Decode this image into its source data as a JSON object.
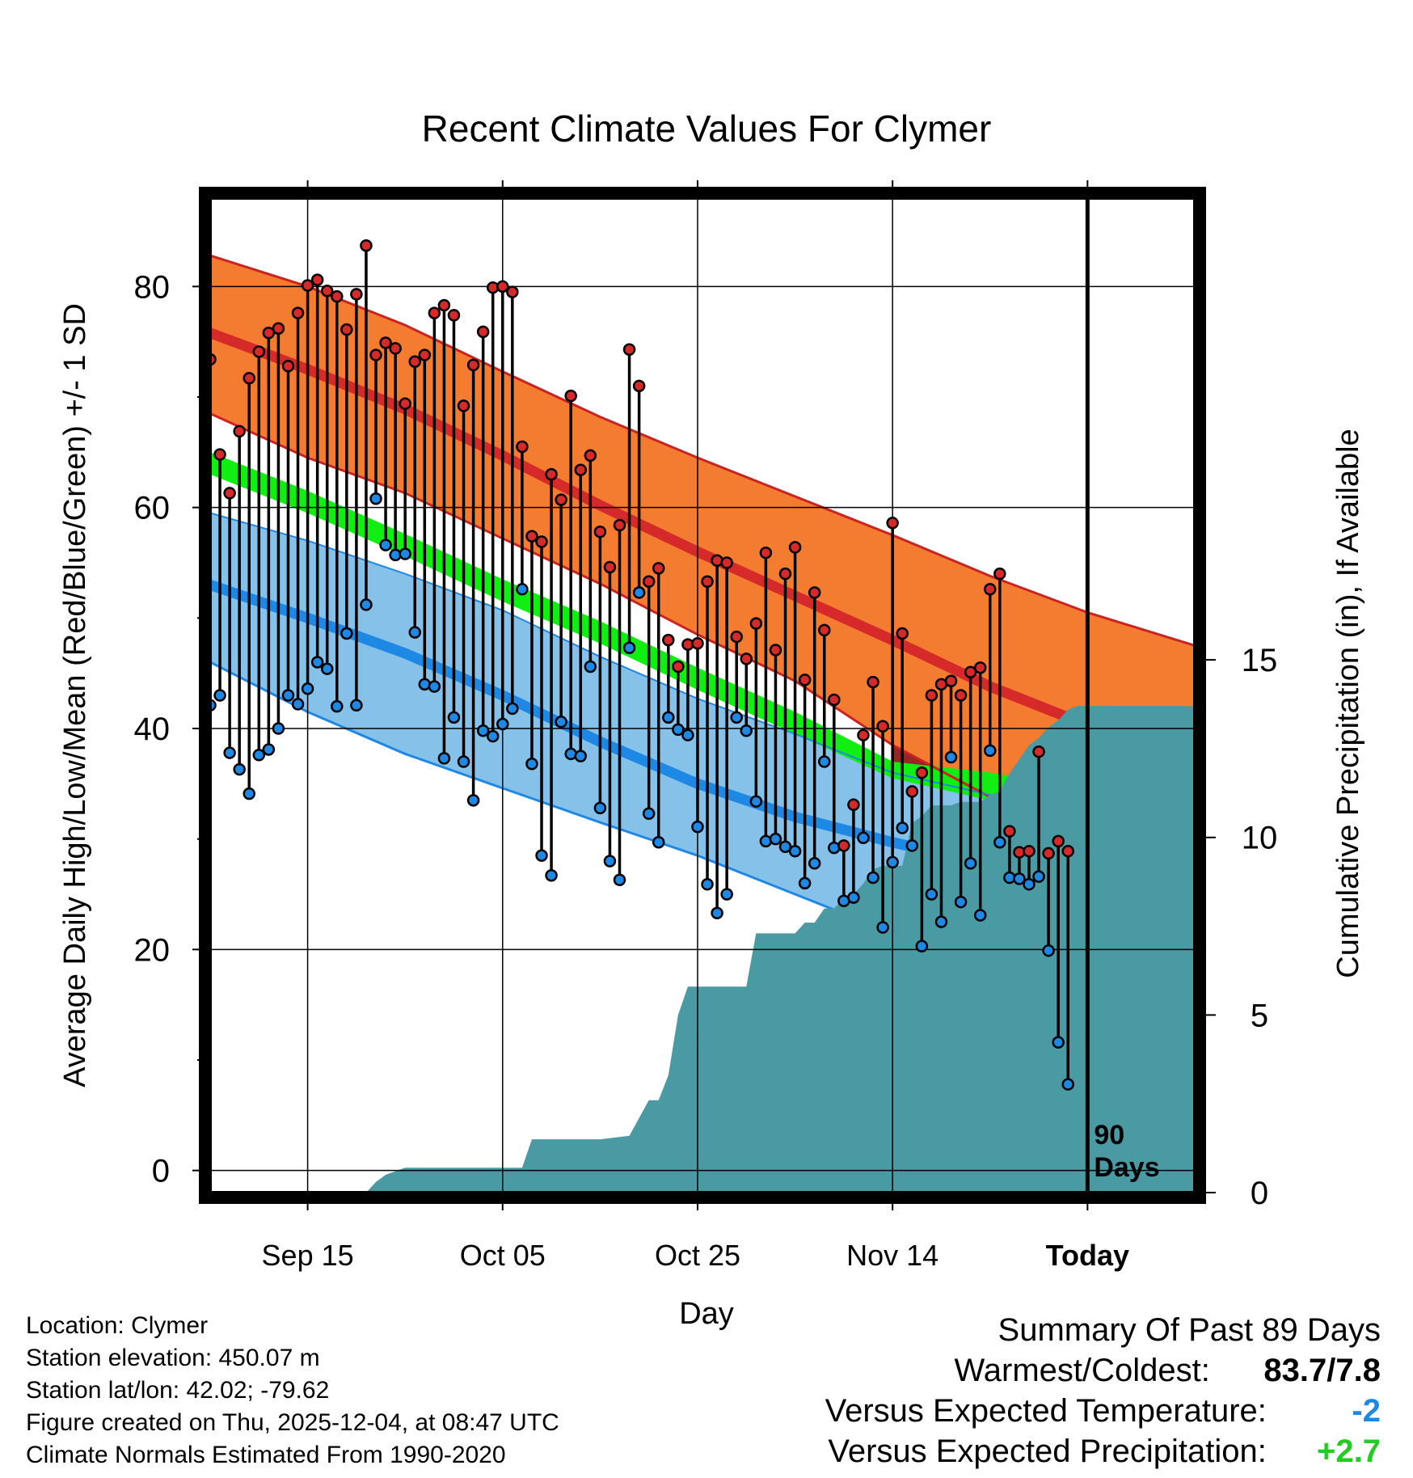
{
  "chart_data": {
    "type": "line",
    "title": "Recent Climate Values For Clymer",
    "xlabel": "Day",
    "ylabel": "Average Daily High/Low/Mean (Red/Blue/Green) +/- 1 SD",
    "y2label": "Cumulative Precipitation (in), If Available",
    "ylim": [
      -2,
      88
    ],
    "yticks": [
      "0",
      "20",
      "40",
      "60",
      "80"
    ],
    "y2lim": [
      0,
      28
    ],
    "y2ticks": [
      "0",
      "5",
      "10",
      "15"
    ],
    "xlim": [
      0,
      101
    ],
    "xticks": [
      {
        "day": 10,
        "label": "Sep 15"
      },
      {
        "day": 30,
        "label": "Oct 05"
      },
      {
        "day": 50,
        "label": "Oct 25"
      },
      {
        "day": 70,
        "label": "Nov 14"
      },
      {
        "day": 90,
        "label": "Today"
      }
    ],
    "today_day": 90,
    "today_label_line1": "90",
    "today_label_line2": "Days",
    "normals": {
      "days": [
        0,
        10,
        20,
        30,
        40,
        50,
        60,
        70,
        80,
        90,
        101
      ],
      "high_mean": [
        75.8,
        72.5,
        68.9,
        64.7,
        60.2,
        56.0,
        52.0,
        48.0,
        43.8,
        40.3,
        37.0
      ],
      "high_upper": [
        82.8,
        80.0,
        76.5,
        72.3,
        68.2,
        64.5,
        61.0,
        57.5,
        53.8,
        50.5,
        47.5
      ],
      "high_lower": [
        68.5,
        64.5,
        61.3,
        57.2,
        53.1,
        48.5,
        44.3,
        38.5,
        33.8,
        30.5,
        27.5
      ],
      "mean_upper": [
        65.0,
        61.5,
        57.6,
        53.5,
        49.7,
        45.5,
        41.5,
        37.0,
        36.0,
        34.5,
        32.5
      ],
      "mean_lower": [
        63.0,
        59.5,
        55.6,
        51.5,
        47.7,
        43.5,
        39.5,
        35.5,
        33.5,
        32.0,
        30.0
      ],
      "low_mean": [
        53.0,
        50.0,
        46.8,
        43.0,
        38.8,
        35.0,
        32.0,
        29.7,
        27.7,
        25.8,
        23.8
      ],
      "low_upper": [
        59.5,
        57.0,
        54.0,
        50.7,
        46.5,
        42.7,
        39.5,
        36.0,
        34.0,
        32.0,
        30.0
      ],
      "low_lower": [
        46.0,
        41.5,
        37.7,
        34.6,
        31.5,
        28.5,
        25.0,
        21.5,
        18.0,
        16.0,
        14.0
      ]
    },
    "observed": {
      "days": [
        0,
        1,
        2,
        3,
        4,
        5,
        6,
        7,
        8,
        9,
        10,
        11,
        12,
        13,
        14,
        15,
        16,
        17,
        18,
        19,
        20,
        21,
        22,
        23,
        24,
        25,
        26,
        27,
        28,
        29,
        30,
        31,
        32,
        33,
        34,
        35,
        36,
        37,
        38,
        39,
        40,
        41,
        42,
        43,
        44,
        45,
        46,
        47,
        48,
        49,
        50,
        51,
        52,
        53,
        54,
        55,
        56,
        57,
        58,
        59,
        60,
        61,
        62,
        63,
        64,
        65,
        66,
        67,
        68,
        69,
        70,
        71,
        72,
        73,
        74,
        75,
        76,
        77,
        78,
        79,
        80,
        81,
        82,
        83,
        84,
        85,
        86,
        87,
        88,
        89
      ],
      "high": [
        73.4,
        64.8,
        61.3,
        66.9,
        71.7,
        74.1,
        75.8,
        76.2,
        72.8,
        77.6,
        80.1,
        80.6,
        79.6,
        79.1,
        76.1,
        79.3,
        83.7,
        73.8,
        74.9,
        74.4,
        69.4,
        73.2,
        73.8,
        77.6,
        78.3,
        77.4,
        69.2,
        72.9,
        75.9,
        79.9,
        80.0,
        79.5,
        65.5,
        57.4,
        56.9,
        63.0,
        60.7,
        70.1,
        63.4,
        64.7,
        57.8,
        54.6,
        58.4,
        74.3,
        71.0,
        53.3,
        54.5,
        48.0,
        45.6,
        47.6,
        47.7,
        53.3,
        55.2,
        55.0,
        48.3,
        46.3,
        49.5,
        55.9,
        47.1,
        54.0,
        56.4,
        44.4,
        52.3,
        48.9,
        42.6,
        29.4,
        33.1,
        39.4,
        44.2,
        40.2,
        58.6,
        48.6,
        34.3,
        36.0,
        43.0,
        44.0,
        44.3,
        43.0,
        45.1,
        45.5,
        52.6,
        54.0,
        30.7,
        28.8,
        28.9,
        37.9,
        28.7,
        29.8,
        28.9,
        null
      ],
      "low": [
        42.1,
        43.0,
        37.8,
        36.3,
        34.1,
        37.6,
        38.1,
        40.0,
        43.0,
        42.2,
        43.6,
        46.0,
        45.4,
        42.0,
        48.6,
        42.1,
        51.2,
        60.8,
        56.6,
        55.7,
        55.8,
        48.7,
        44.0,
        43.8,
        37.3,
        41.0,
        37.0,
        33.5,
        39.8,
        39.3,
        40.4,
        41.8,
        52.6,
        36.8,
        28.5,
        26.7,
        40.6,
        37.7,
        37.5,
        45.6,
        32.8,
        28.0,
        26.3,
        47.3,
        52.3,
        32.3,
        29.7,
        41.0,
        39.9,
        39.4,
        31.1,
        25.9,
        23.3,
        25.0,
        41.0,
        39.8,
        33.4,
        29.8,
        30.0,
        29.3,
        28.9,
        26.0,
        27.8,
        37.0,
        29.2,
        24.4,
        24.7,
        30.1,
        26.5,
        22.0,
        27.9,
        31.0,
        29.4,
        20.3,
        25.0,
        22.5,
        37.4,
        24.3,
        27.8,
        23.1,
        38.0,
        29.7,
        26.5,
        26.4,
        25.9,
        26.6,
        19.9,
        11.6,
        7.8,
        null
      ]
    },
    "precip": {
      "days": [
        0,
        16,
        17,
        18,
        19,
        20,
        25,
        30,
        31,
        32,
        33,
        40,
        43,
        45,
        46,
        47,
        48,
        49,
        50,
        51,
        52,
        53,
        54,
        55,
        56,
        57,
        58,
        59,
        60,
        61,
        62,
        63,
        64,
        65,
        66,
        67,
        68,
        69,
        70,
        71,
        72,
        73,
        74,
        75,
        76,
        77,
        78,
        79,
        80,
        81,
        82,
        83,
        84,
        85,
        86,
        87,
        88,
        89,
        90,
        101
      ],
      "totals": [
        0,
        0,
        0.3,
        0.5,
        0.6,
        0.7,
        0.7,
        0.7,
        0.7,
        0.7,
        1.5,
        1.5,
        1.6,
        2.6,
        2.6,
        3.3,
        5.0,
        5.8,
        5.8,
        5.8,
        5.8,
        5.8,
        5.8,
        5.8,
        7.3,
        7.3,
        7.3,
        7.3,
        7.3,
        7.6,
        7.6,
        8.0,
        8.0,
        8.3,
        8.4,
        8.7,
        9.1,
        9.2,
        9.2,
        9.2,
        10.4,
        10.6,
        10.9,
        10.9,
        10.9,
        11.0,
        11.0,
        11.0,
        11.2,
        11.3,
        11.8,
        12.2,
        12.6,
        12.8,
        13.1,
        13.3,
        13.6,
        13.7,
        13.7,
        13.7
      ]
    }
  },
  "info": {
    "location": "Location: Clymer",
    "elevation": "Station elevation: 450.07 m",
    "latlon": "Station lat/lon: 42.02; -79.62",
    "created": "Figure created on Thu, 2025-12-04, at 08:47 UTC",
    "normals_note": "Climate Normals Estimated From 1990-2020"
  },
  "summary": {
    "title": "Summary Of Past 89 Days",
    "warm_cold_label": "Warmest/Coldest:",
    "warm_cold_value": "83.7/7.8",
    "temp_label": "Versus Expected Temperature:",
    "temp_value": "-2",
    "precip_label": "Versus Expected Precipitation:",
    "precip_value": "+2.7",
    "temp_color": "#1e88e5",
    "precip_color": "#22cc22"
  },
  "colors": {
    "high_band": "#f47c30",
    "high_mean": "#d62a2a",
    "high_edge": "#cc2222",
    "mean_band": "#11ee11",
    "low_band": "#85c1e9",
    "low_mean": "#1e88e5",
    "dark_red": "#8b1010",
    "precip_fill": "#4a9aa3",
    "high_point": "#d62a2a",
    "low_point": "#1e88e5"
  }
}
